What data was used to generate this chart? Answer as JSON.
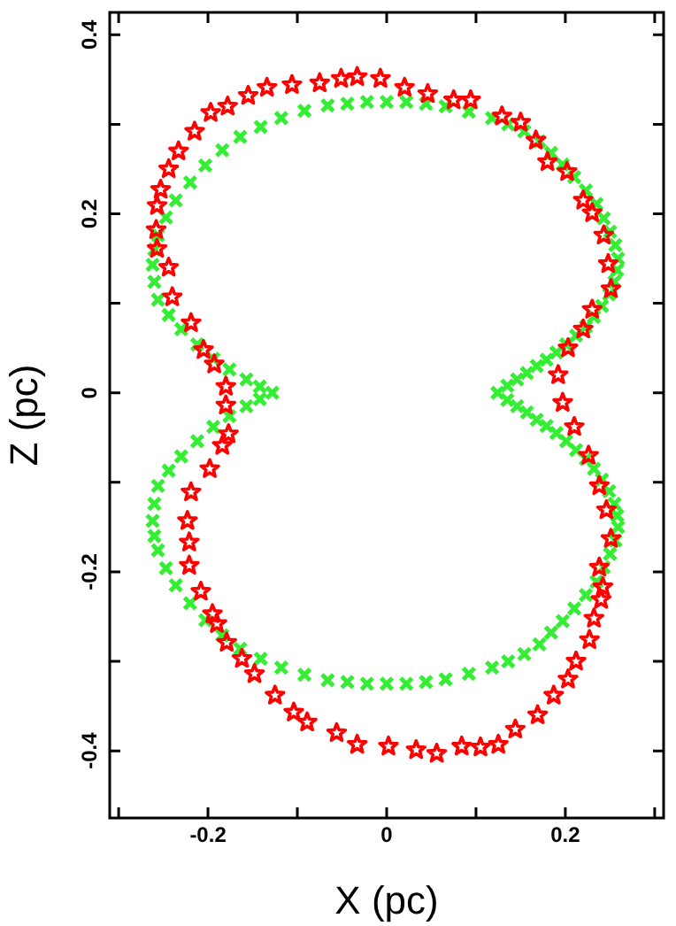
{
  "chart_data": {
    "type": "scatter",
    "xlabel": "X (pc)",
    "ylabel": "Z (pc)",
    "xlim": [
      -0.31,
      0.31
    ],
    "ylim": [
      -0.475,
      0.425
    ],
    "xticks": [
      {
        "value": -0.3,
        "label": null
      },
      -0.2,
      {
        "value": -0.1,
        "label": null
      },
      0,
      {
        "value": 0.1,
        "label": null
      },
      0.2,
      {
        "value": 0.3,
        "label": null
      }
    ],
    "yticks": [
      -0.4,
      {
        "value": -0.3,
        "label": null
      },
      -0.2,
      {
        "value": -0.1,
        "label": null
      },
      0,
      {
        "value": 0.1,
        "label": null
      },
      0.2,
      {
        "value": 0.3,
        "label": null
      },
      0.4
    ],
    "grid": false,
    "legend": false,
    "series": [
      {
        "color": "#33ee33",
        "marker": "cross",
        "x": [
          0.124,
          0.135,
          0.146,
          0.157,
          0.168,
          0.179,
          0.19,
          0.201,
          0.212,
          0.223,
          0.232,
          0.241,
          0.249,
          0.255,
          0.258,
          0.259,
          0.256,
          0.25,
          0.243,
          0.235,
          0.223,
          0.21,
          0.197,
          0.184,
          0.171,
          0.154,
          0.136,
          0.118,
          0.092,
          0.066,
          0.044,
          0.022,
          0,
          -0.022,
          -0.044,
          -0.066,
          -0.092,
          -0.118,
          -0.141,
          -0.164,
          -0.184,
          -0.203,
          -0.22,
          -0.236,
          -0.247,
          -0.256,
          -0.26,
          -0.262,
          -0.26,
          -0.256,
          -0.244,
          -0.23,
          -0.212,
          -0.194,
          -0.176,
          -0.157,
          -0.142,
          -0.128,
          -0.142,
          -0.157,
          -0.176,
          -0.194,
          -0.212,
          -0.23,
          -0.244,
          -0.256,
          -0.26,
          -0.262,
          -0.26,
          -0.256,
          -0.247,
          -0.236,
          -0.22,
          -0.203,
          -0.184,
          -0.164,
          -0.141,
          -0.118,
          -0.092,
          -0.066,
          -0.044,
          -0.022,
          0,
          0.022,
          0.044,
          0.066,
          0.092,
          0.118,
          0.136,
          0.154,
          0.171,
          0.184,
          0.197,
          0.21,
          0.223,
          0.235,
          0.243,
          0.25,
          0.256,
          0.259,
          0.258,
          0.255,
          0.249,
          0.241,
          0.232,
          0.223,
          0.212,
          0.201,
          0.19,
          0.179,
          0.168,
          0.157,
          0.146,
          0.135
        ],
        "values": [
          0,
          0.008,
          0.015,
          0.022,
          0.03,
          0.037,
          0.045,
          0.054,
          0.064,
          0.074,
          0.085,
          0.097,
          0.11,
          0.124,
          0.137,
          0.15,
          0.165,
          0.18,
          0.195,
          0.211,
          0.226,
          0.241,
          0.255,
          0.268,
          0.281,
          0.292,
          0.3,
          0.307,
          0.314,
          0.32,
          0.323,
          0.325,
          0.325,
          0.325,
          0.323,
          0.321,
          0.315,
          0.307,
          0.297,
          0.286,
          0.271,
          0.254,
          0.235,
          0.215,
          0.196,
          0.176,
          0.16,
          0.143,
          0.124,
          0.104,
          0.087,
          0.071,
          0.054,
          0.038,
          0.026,
          0.015,
          0.007,
          0,
          -0.007,
          -0.015,
          -0.026,
          -0.038,
          -0.054,
          -0.071,
          -0.087,
          -0.104,
          -0.124,
          -0.143,
          -0.16,
          -0.176,
          -0.196,
          -0.215,
          -0.235,
          -0.254,
          -0.271,
          -0.286,
          -0.297,
          -0.307,
          -0.315,
          -0.321,
          -0.323,
          -0.325,
          -0.325,
          -0.325,
          -0.323,
          -0.32,
          -0.314,
          -0.307,
          -0.3,
          -0.292,
          -0.281,
          -0.268,
          -0.255,
          -0.241,
          -0.226,
          -0.211,
          -0.195,
          -0.18,
          -0.165,
          -0.15,
          -0.137,
          -0.124,
          -0.11,
          -0.097,
          -0.085,
          -0.074,
          -0.064,
          -0.054,
          -0.045,
          -0.037,
          -0.03,
          -0.022,
          -0.015,
          -0.008
        ]
      },
      {
        "type": "scatter",
        "color": "#ff0000",
        "marker": "star",
        "x": [
          -0.007,
          -0.033,
          -0.051,
          -0.075,
          -0.106,
          -0.134,
          -0.155,
          -0.178,
          -0.197,
          -0.215,
          -0.233,
          -0.244,
          -0.253,
          -0.257,
          -0.258,
          -0.257,
          -0.244,
          -0.24,
          -0.219,
          -0.205,
          -0.193,
          -0.18,
          -0.18,
          0.02,
          0.046,
          0.075,
          0.094,
          0.129,
          0.15,
          0.167,
          0.18,
          0.202,
          0.22,
          0.23,
          0.243,
          0.248,
          0.251,
          0.23,
          0.22,
          0.203,
          0.192,
          0.197,
          -0.177,
          -0.184,
          -0.198,
          -0.219,
          -0.223,
          -0.221,
          -0.221,
          -0.208,
          -0.195,
          -0.19,
          -0.179,
          -0.162,
          -0.148,
          -0.125,
          -0.104,
          -0.089,
          -0.056,
          -0.033,
          0.002,
          0.033,
          0.056,
          0.084,
          0.105,
          0.125,
          0.144,
          0.169,
          0.187,
          0.203,
          0.212,
          0.227,
          0.232,
          0.24,
          0.242,
          0.238,
          0.251,
          0.246,
          0.238,
          0.226,
          0.21
        ],
        "values": [
          0.351,
          0.353,
          0.351,
          0.346,
          0.344,
          0.341,
          0.332,
          0.32,
          0.313,
          0.292,
          0.27,
          0.25,
          0.227,
          0.209,
          0.182,
          0.161,
          0.14,
          0.107,
          0.078,
          0.048,
          0.032,
          0.007,
          -0.014,
          0.341,
          0.334,
          0.327,
          0.327,
          0.309,
          0.302,
          0.282,
          0.258,
          0.247,
          0.215,
          0.201,
          0.176,
          0.144,
          0.116,
          0.093,
          0.071,
          0.05,
          0.02,
          -0.011,
          -0.046,
          -0.059,
          -0.085,
          -0.111,
          -0.143,
          -0.167,
          -0.193,
          -0.222,
          -0.247,
          -0.258,
          -0.279,
          -0.297,
          -0.314,
          -0.338,
          -0.357,
          -0.368,
          -0.38,
          -0.393,
          -0.395,
          -0.399,
          -0.403,
          -0.395,
          -0.396,
          -0.393,
          -0.376,
          -0.36,
          -0.338,
          -0.32,
          -0.3,
          -0.276,
          -0.252,
          -0.231,
          -0.217,
          -0.195,
          -0.163,
          -0.131,
          -0.104,
          -0.07,
          -0.038
        ]
      }
    ]
  }
}
